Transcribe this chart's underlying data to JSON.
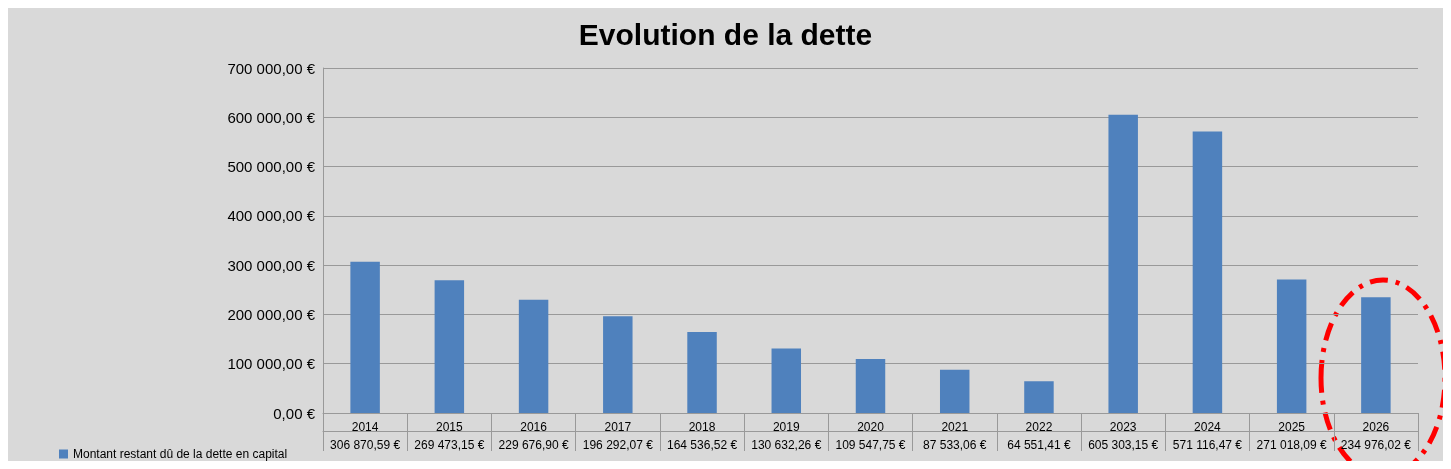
{
  "chart_data": {
    "type": "bar",
    "title": "Evolution de la dette",
    "categories": [
      "2014",
      "2015",
      "2016",
      "2017",
      "2018",
      "2019",
      "2020",
      "2021",
      "2022",
      "2023",
      "2024",
      "2025",
      "2026"
    ],
    "series": [
      {
        "name": "Montant restant dû de la dette en capital",
        "color": "#4f81bd",
        "values": [
          306870.59,
          269473.15,
          229676.9,
          196292.07,
          164536.52,
          130632.26,
          109547.75,
          87533.06,
          64551.41,
          605303.15,
          571116.47,
          271018.09,
          234976.02
        ],
        "value_labels": [
          "306 870,59 €",
          "269 473,15 €",
          "229 676,90 €",
          "196 292,07 €",
          "164 536,52 €",
          "130 632,26 €",
          "109 547,75 €",
          "87 533,06 €",
          "64 551,41 €",
          "605 303,15 €",
          "571 116,47 €",
          "271 018,09 €",
          "234 976,02 €"
        ]
      }
    ],
    "ylim": [
      0,
      700000
    ],
    "yticks": [
      {
        "value": 0,
        "label": "0,00 €"
      },
      {
        "value": 100000,
        "label": "100 000,00 €"
      },
      {
        "value": 200000,
        "label": "200 000,00 €"
      },
      {
        "value": 300000,
        "label": "300 000,00 €"
      },
      {
        "value": 400000,
        "label": "400 000,00 €"
      },
      {
        "value": 500000,
        "label": "500 000,00 €"
      },
      {
        "value": 600000,
        "label": "600 000,00 €"
      },
      {
        "value": 700000,
        "label": "700 000,00 €"
      }
    ],
    "grid": "y",
    "legend": "bottom left"
  }
}
